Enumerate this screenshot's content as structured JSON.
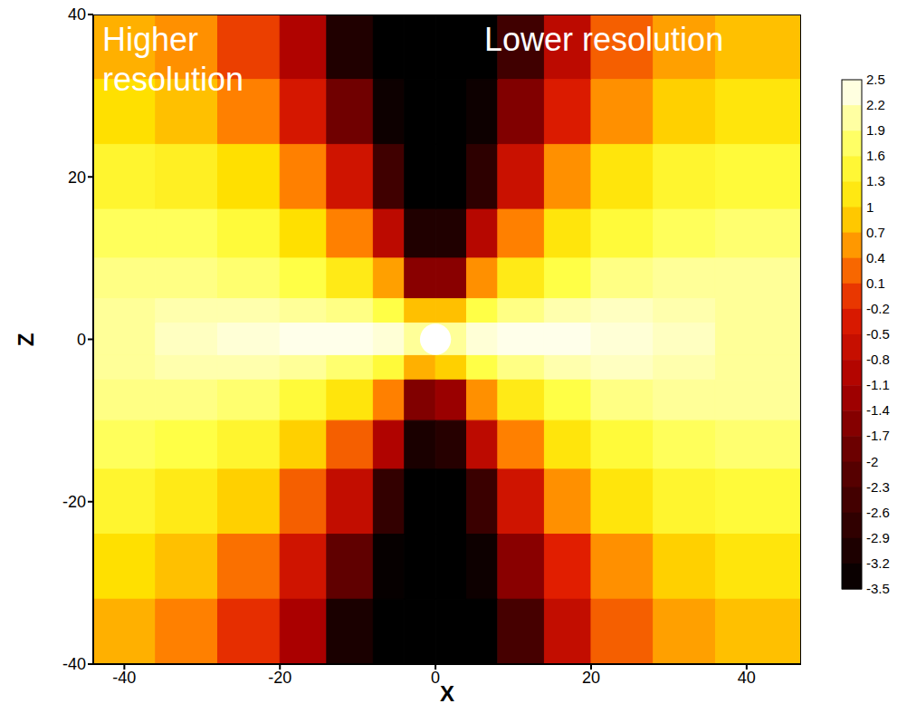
{
  "chart_data": {
    "type": "heatmap",
    "x_label": "X",
    "y_label": "Z",
    "xlim": [
      -44,
      47
    ],
    "ylim": [
      -40,
      40
    ],
    "xticks": [
      -40,
      -20,
      0,
      20,
      40
    ],
    "yticks": [
      -40,
      -20,
      0,
      20,
      40
    ],
    "annotations": [
      "Higher resolution",
      "Lower resolution"
    ],
    "x_edges": [
      -44,
      -36,
      -28,
      -20,
      -14,
      -8,
      -4,
      0,
      4,
      8,
      14,
      20,
      28,
      36,
      47
    ],
    "y_edges": [
      40,
      32,
      24,
      16,
      10,
      5,
      2,
      -2,
      -5,
      -10,
      -16,
      -24,
      -32,
      -40
    ],
    "cells": [
      [
        0.7,
        0.5,
        0.0,
        -1.0,
        -3.0,
        -3.5,
        -3.5,
        -3.5,
        -3.5,
        -2.5,
        -0.8,
        0.2,
        0.6,
        0.8
      ],
      [
        1.0,
        0.8,
        0.4,
        -0.4,
        -1.8,
        -3.3,
        -3.5,
        -3.5,
        -3.3,
        -1.6,
        -0.3,
        0.5,
        0.9,
        1.1
      ],
      [
        1.4,
        1.3,
        1.0,
        0.4,
        -0.5,
        -2.5,
        -3.5,
        -3.5,
        -2.8,
        -0.6,
        0.5,
        1.1,
        1.4,
        1.5
      ],
      [
        1.7,
        1.7,
        1.5,
        1.0,
        0.4,
        -0.8,
        -3.0,
        -3.0,
        -0.9,
        0.4,
        1.1,
        1.5,
        1.7,
        1.8
      ],
      [
        1.9,
        1.9,
        1.8,
        1.6,
        1.2,
        0.6,
        -1.5,
        -1.5,
        0.5,
        1.2,
        1.6,
        1.9,
        2.0,
        2.0
      ],
      [
        2.0,
        2.1,
        2.1,
        2.0,
        1.9,
        1.6,
        0.8,
        0.8,
        1.6,
        1.9,
        2.1,
        2.2,
        2.1,
        2.0
      ],
      [
        2.0,
        2.2,
        2.3,
        2.4,
        2.4,
        2.3,
        2.0,
        2.0,
        2.3,
        2.4,
        2.4,
        2.3,
        2.2,
        2.0
      ],
      [
        2.0,
        2.1,
        2.1,
        2.0,
        1.8,
        1.5,
        0.7,
        0.9,
        1.6,
        1.9,
        2.1,
        2.2,
        2.1,
        2.0
      ],
      [
        1.9,
        1.9,
        1.8,
        1.5,
        1.1,
        0.4,
        -1.6,
        -1.3,
        0.5,
        1.2,
        1.6,
        1.9,
        2.0,
        2.0
      ],
      [
        1.7,
        1.6,
        1.4,
        0.9,
        0.2,
        -1.0,
        -3.1,
        -2.9,
        -0.8,
        0.4,
        1.1,
        1.5,
        1.7,
        1.8
      ],
      [
        1.4,
        1.2,
        0.9,
        0.2,
        -0.7,
        -2.7,
        -3.5,
        -3.5,
        -2.6,
        -0.5,
        0.5,
        1.1,
        1.4,
        1.5
      ],
      [
        1.0,
        0.8,
        0.3,
        -0.5,
        -2.0,
        -3.4,
        -3.5,
        -3.5,
        -3.3,
        -1.5,
        -0.2,
        0.5,
        0.9,
        1.1
      ],
      [
        0.7,
        0.4,
        -0.1,
        -1.1,
        -3.1,
        -3.5,
        -3.5,
        -3.5,
        -3.5,
        -2.4,
        -0.7,
        0.2,
        0.6,
        0.8
      ]
    ],
    "colorbar_range": [
      -3.5,
      2.5
    ],
    "colorbar_ticks": [
      2.5,
      2.2,
      1.9,
      1.6,
      1.3,
      1,
      0.7,
      0.4,
      0.1,
      -0.2,
      -0.5,
      -0.8,
      -1.1,
      -1.4,
      -1.7,
      -2,
      -2.3,
      -2.6,
      -2.9,
      -3.2,
      -3.5
    ],
    "inner_boundary": {
      "x": 0,
      "y": 0,
      "r": 2
    }
  }
}
